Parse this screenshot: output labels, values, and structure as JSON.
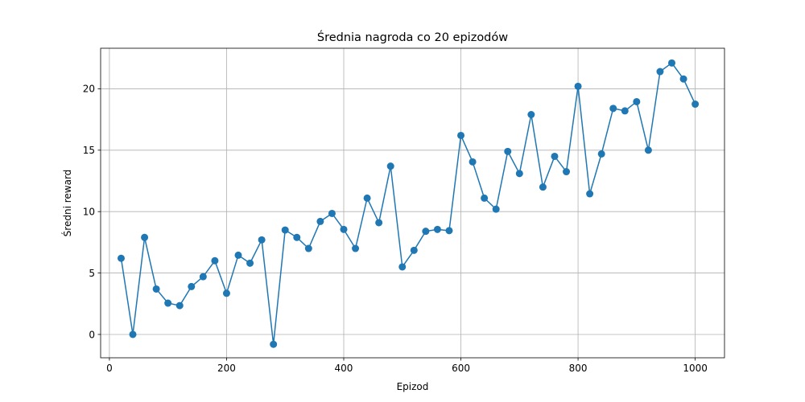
{
  "chart_data": {
    "type": "line",
    "title": "Średnia nagroda co 20 epizodów",
    "xlabel": "Epizod",
    "ylabel": "Średni reward",
    "xlim": [
      -15,
      1050
    ],
    "ylim": [
      -1.9,
      23.3
    ],
    "xticks": [
      0,
      200,
      400,
      600,
      800,
      1000
    ],
    "yticks": [
      0,
      5,
      10,
      15,
      20
    ],
    "grid": true,
    "legend": "none",
    "colors": {
      "line": "#1f77b4",
      "grid": "#b0b0b0",
      "axes": "#000000"
    },
    "marker": "circle",
    "series": [
      {
        "x": [
          20,
          40,
          60,
          80,
          100,
          120,
          140,
          160,
          180,
          200,
          220,
          240,
          260,
          280,
          300,
          320,
          340,
          360,
          380,
          400,
          420,
          440,
          460,
          480,
          500,
          520,
          540,
          560,
          580,
          600,
          620,
          640,
          660,
          680,
          700,
          720,
          740,
          760,
          780,
          800,
          820,
          840,
          860,
          880,
          900,
          920,
          940,
          960,
          980,
          1000
        ],
        "values": [
          6.2,
          0.0,
          7.9,
          3.7,
          2.55,
          2.35,
          3.9,
          4.7,
          6.0,
          3.35,
          6.45,
          5.8,
          7.7,
          -0.8,
          8.5,
          7.9,
          7.0,
          9.2,
          9.85,
          8.55,
          7.0,
          11.1,
          9.1,
          13.7,
          5.5,
          6.85,
          8.4,
          8.55,
          8.45,
          16.2,
          14.05,
          11.1,
          10.2,
          14.9,
          13.1,
          17.9,
          12.0,
          14.5,
          13.25,
          20.2,
          11.45,
          14.7,
          18.4,
          18.2,
          18.95,
          15.0,
          21.4,
          22.1,
          20.8,
          18.75
        ]
      }
    ]
  }
}
